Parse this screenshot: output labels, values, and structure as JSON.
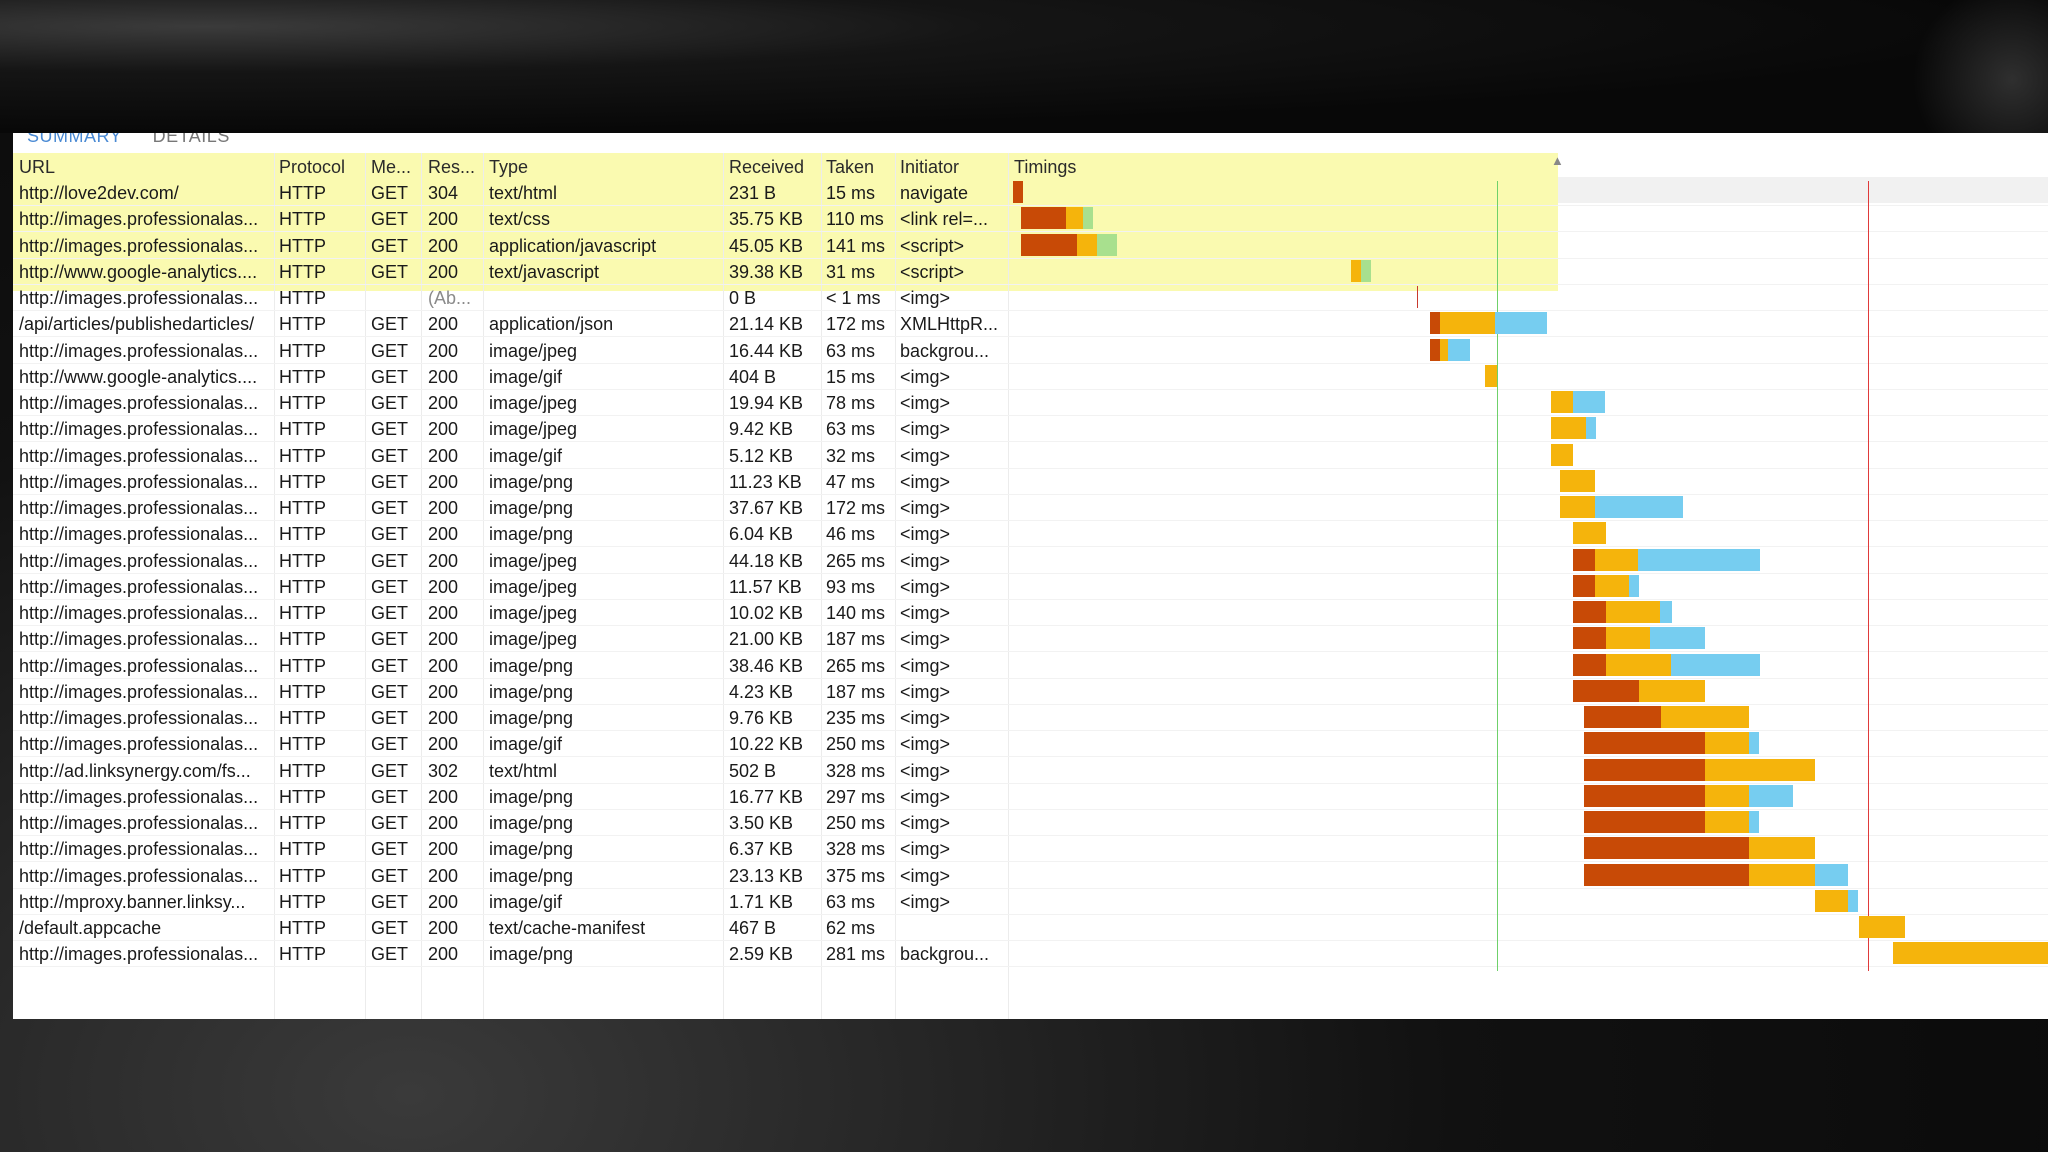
{
  "tabs": {
    "summary": "SUMMARY",
    "details": "DETAILS"
  },
  "columns": {
    "url": "URL",
    "protocol": "Protocol",
    "method": "Me...",
    "result": "Res...",
    "type": "Type",
    "received": "Received",
    "taken": "Taken",
    "initiator": "Initiator",
    "timings": "Timings"
  },
  "colors": {
    "highlight": "#fafab0",
    "wait": "#c84a06",
    "receive": "#f5b40c",
    "blue": "#76cdf0",
    "green": "#a8e08e",
    "dom_line": "#6fd16a",
    "load_line": "#e03a3a"
  },
  "rows": [
    {
      "url": "http://love2dev.com/",
      "protocol": "HTTP",
      "method": "GET",
      "result": "304",
      "type": "text/html",
      "received": "231 B",
      "taken": "15 ms",
      "initiator": "navigate",
      "highlight": true
    },
    {
      "url": "http://images.professionalas...",
      "protocol": "HTTP",
      "method": "GET",
      "result": "200",
      "type": "text/css",
      "received": "35.75 KB",
      "taken": "110 ms",
      "initiator": "<link rel=...",
      "highlight": true
    },
    {
      "url": "http://images.professionalas...",
      "protocol": "HTTP",
      "method": "GET",
      "result": "200",
      "type": "application/javascript",
      "received": "45.05 KB",
      "taken": "141 ms",
      "initiator": "<script>",
      "highlight": true
    },
    {
      "url": "http://www.google-analytics....",
      "protocol": "HTTP",
      "method": "GET",
      "result": "200",
      "type": "text/javascript",
      "received": "39.38 KB",
      "taken": "31 ms",
      "initiator": "<script>",
      "highlight": true
    },
    {
      "url": "http://images.professionalas...",
      "protocol": "HTTP",
      "method": "",
      "result": "(Ab...",
      "type": "",
      "received": "0 B",
      "taken": "< 1 ms",
      "initiator": "<img>",
      "highlight": false,
      "muted": true
    },
    {
      "url": "/api/articles/publishedarticles/",
      "protocol": "HTTP",
      "method": "GET",
      "result": "200",
      "type": "application/json",
      "received": "21.14 KB",
      "taken": "172 ms",
      "initiator": "XMLHttpR..."
    },
    {
      "url": "http://images.professionalas...",
      "protocol": "HTTP",
      "method": "GET",
      "result": "200",
      "type": "image/jpeg",
      "received": "16.44 KB",
      "taken": "63 ms",
      "initiator": "backgrou..."
    },
    {
      "url": "http://www.google-analytics....",
      "protocol": "HTTP",
      "method": "GET",
      "result": "200",
      "type": "image/gif",
      "received": "404 B",
      "taken": "15 ms",
      "initiator": "<img>"
    },
    {
      "url": "http://images.professionalas...",
      "protocol": "HTTP",
      "method": "GET",
      "result": "200",
      "type": "image/jpeg",
      "received": "19.94 KB",
      "taken": "78 ms",
      "initiator": "<img>"
    },
    {
      "url": "http://images.professionalas...",
      "protocol": "HTTP",
      "method": "GET",
      "result": "200",
      "type": "image/jpeg",
      "received": "9.42 KB",
      "taken": "63 ms",
      "initiator": "<img>"
    },
    {
      "url": "http://images.professionalas...",
      "protocol": "HTTP",
      "method": "GET",
      "result": "200",
      "type": "image/gif",
      "received": "5.12 KB",
      "taken": "32 ms",
      "initiator": "<img>"
    },
    {
      "url": "http://images.professionalas...",
      "protocol": "HTTP",
      "method": "GET",
      "result": "200",
      "type": "image/png",
      "received": "11.23 KB",
      "taken": "47 ms",
      "initiator": "<img>"
    },
    {
      "url": "http://images.professionalas...",
      "protocol": "HTTP",
      "method": "GET",
      "result": "200",
      "type": "image/png",
      "received": "37.67 KB",
      "taken": "172 ms",
      "initiator": "<img>"
    },
    {
      "url": "http://images.professionalas...",
      "protocol": "HTTP",
      "method": "GET",
      "result": "200",
      "type": "image/png",
      "received": "6.04 KB",
      "taken": "46 ms",
      "initiator": "<img>"
    },
    {
      "url": "http://images.professionalas...",
      "protocol": "HTTP",
      "method": "GET",
      "result": "200",
      "type": "image/jpeg",
      "received": "44.18 KB",
      "taken": "265 ms",
      "initiator": "<img>"
    },
    {
      "url": "http://images.professionalas...",
      "protocol": "HTTP",
      "method": "GET",
      "result": "200",
      "type": "image/jpeg",
      "received": "11.57 KB",
      "taken": "93 ms",
      "initiator": "<img>"
    },
    {
      "url": "http://images.professionalas...",
      "protocol": "HTTP",
      "method": "GET",
      "result": "200",
      "type": "image/jpeg",
      "received": "10.02 KB",
      "taken": "140 ms",
      "initiator": "<img>"
    },
    {
      "url": "http://images.professionalas...",
      "protocol": "HTTP",
      "method": "GET",
      "result": "200",
      "type": "image/jpeg",
      "received": "21.00 KB",
      "taken": "187 ms",
      "initiator": "<img>"
    },
    {
      "url": "http://images.professionalas...",
      "protocol": "HTTP",
      "method": "GET",
      "result": "200",
      "type": "image/png",
      "received": "38.46 KB",
      "taken": "265 ms",
      "initiator": "<img>"
    },
    {
      "url": "http://images.professionalas...",
      "protocol": "HTTP",
      "method": "GET",
      "result": "200",
      "type": "image/png",
      "received": "4.23 KB",
      "taken": "187 ms",
      "initiator": "<img>"
    },
    {
      "url": "http://images.professionalas...",
      "protocol": "HTTP",
      "method": "GET",
      "result": "200",
      "type": "image/png",
      "received": "9.76 KB",
      "taken": "235 ms",
      "initiator": "<img>"
    },
    {
      "url": "http://images.professionalas...",
      "protocol": "HTTP",
      "method": "GET",
      "result": "200",
      "type": "image/gif",
      "received": "10.22 KB",
      "taken": "250 ms",
      "initiator": "<img>"
    },
    {
      "url": "http://ad.linksynergy.com/fs...",
      "protocol": "HTTP",
      "method": "GET",
      "result": "302",
      "type": "text/html",
      "received": "502 B",
      "taken": "328 ms",
      "initiator": "<img>"
    },
    {
      "url": "http://images.professionalas...",
      "protocol": "HTTP",
      "method": "GET",
      "result": "200",
      "type": "image/png",
      "received": "16.77 KB",
      "taken": "297 ms",
      "initiator": "<img>"
    },
    {
      "url": "http://images.professionalas...",
      "protocol": "HTTP",
      "method": "GET",
      "result": "200",
      "type": "image/png",
      "received": "3.50 KB",
      "taken": "250 ms",
      "initiator": "<img>"
    },
    {
      "url": "http://images.professionalas...",
      "protocol": "HTTP",
      "method": "GET",
      "result": "200",
      "type": "image/png",
      "received": "6.37 KB",
      "taken": "328 ms",
      "initiator": "<img>"
    },
    {
      "url": "http://images.professionalas...",
      "protocol": "HTTP",
      "method": "GET",
      "result": "200",
      "type": "image/png",
      "received": "23.13 KB",
      "taken": "375 ms",
      "initiator": "<img>"
    },
    {
      "url": "http://mproxy.banner.linksy...",
      "protocol": "HTTP",
      "method": "GET",
      "result": "200",
      "type": "image/gif",
      "received": "1.71 KB",
      "taken": "63 ms",
      "initiator": "<img>"
    },
    {
      "url": "/default.appcache",
      "protocol": "HTTP",
      "method": "GET",
      "result": "200",
      "type": "text/cache-manifest",
      "received": "467 B",
      "taken": "62 ms",
      "initiator": ""
    },
    {
      "url": "http://images.professionalas...",
      "protocol": "HTTP",
      "method": "GET",
      "result": "200",
      "type": "image/png",
      "received": "2.59 KB",
      "taken": "281 ms",
      "initiator": "backgrou..."
    }
  ]
}
